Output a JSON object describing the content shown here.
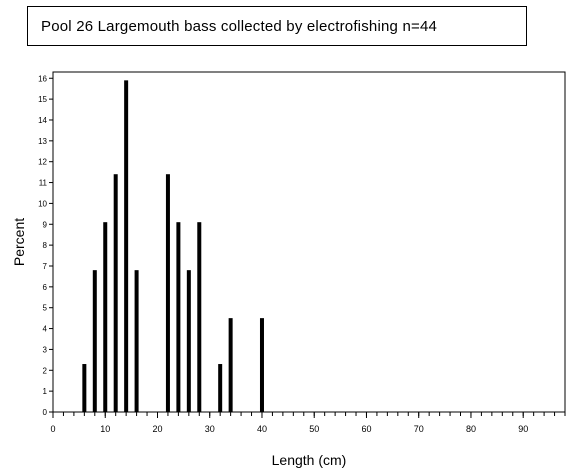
{
  "title": "Pool 26 Largemouth bass collected by electrofishing n=44",
  "chart_data": {
    "type": "bar",
    "xlabel": "Length (cm)",
    "ylabel": "Percent",
    "xlim": [
      0,
      98
    ],
    "ylim": [
      0,
      16.3
    ],
    "x_major_ticks": [
      0,
      10,
      20,
      30,
      40,
      50,
      60,
      70,
      80,
      90
    ],
    "x_minor_step": 2,
    "y_ticks": [
      0,
      1,
      2,
      3,
      4,
      5,
      6,
      7,
      8,
      9,
      10,
      11,
      12,
      13,
      14,
      15,
      16
    ],
    "grid": false,
    "bar_color": "#000000",
    "x": [
      6,
      8,
      10,
      12,
      14,
      16,
      22,
      24,
      26,
      28,
      32,
      34,
      40
    ],
    "values": [
      2.3,
      6.8,
      9.1,
      11.4,
      15.9,
      6.8,
      11.4,
      9.1,
      6.8,
      9.1,
      2.3,
      4.5,
      4.5
    ]
  }
}
